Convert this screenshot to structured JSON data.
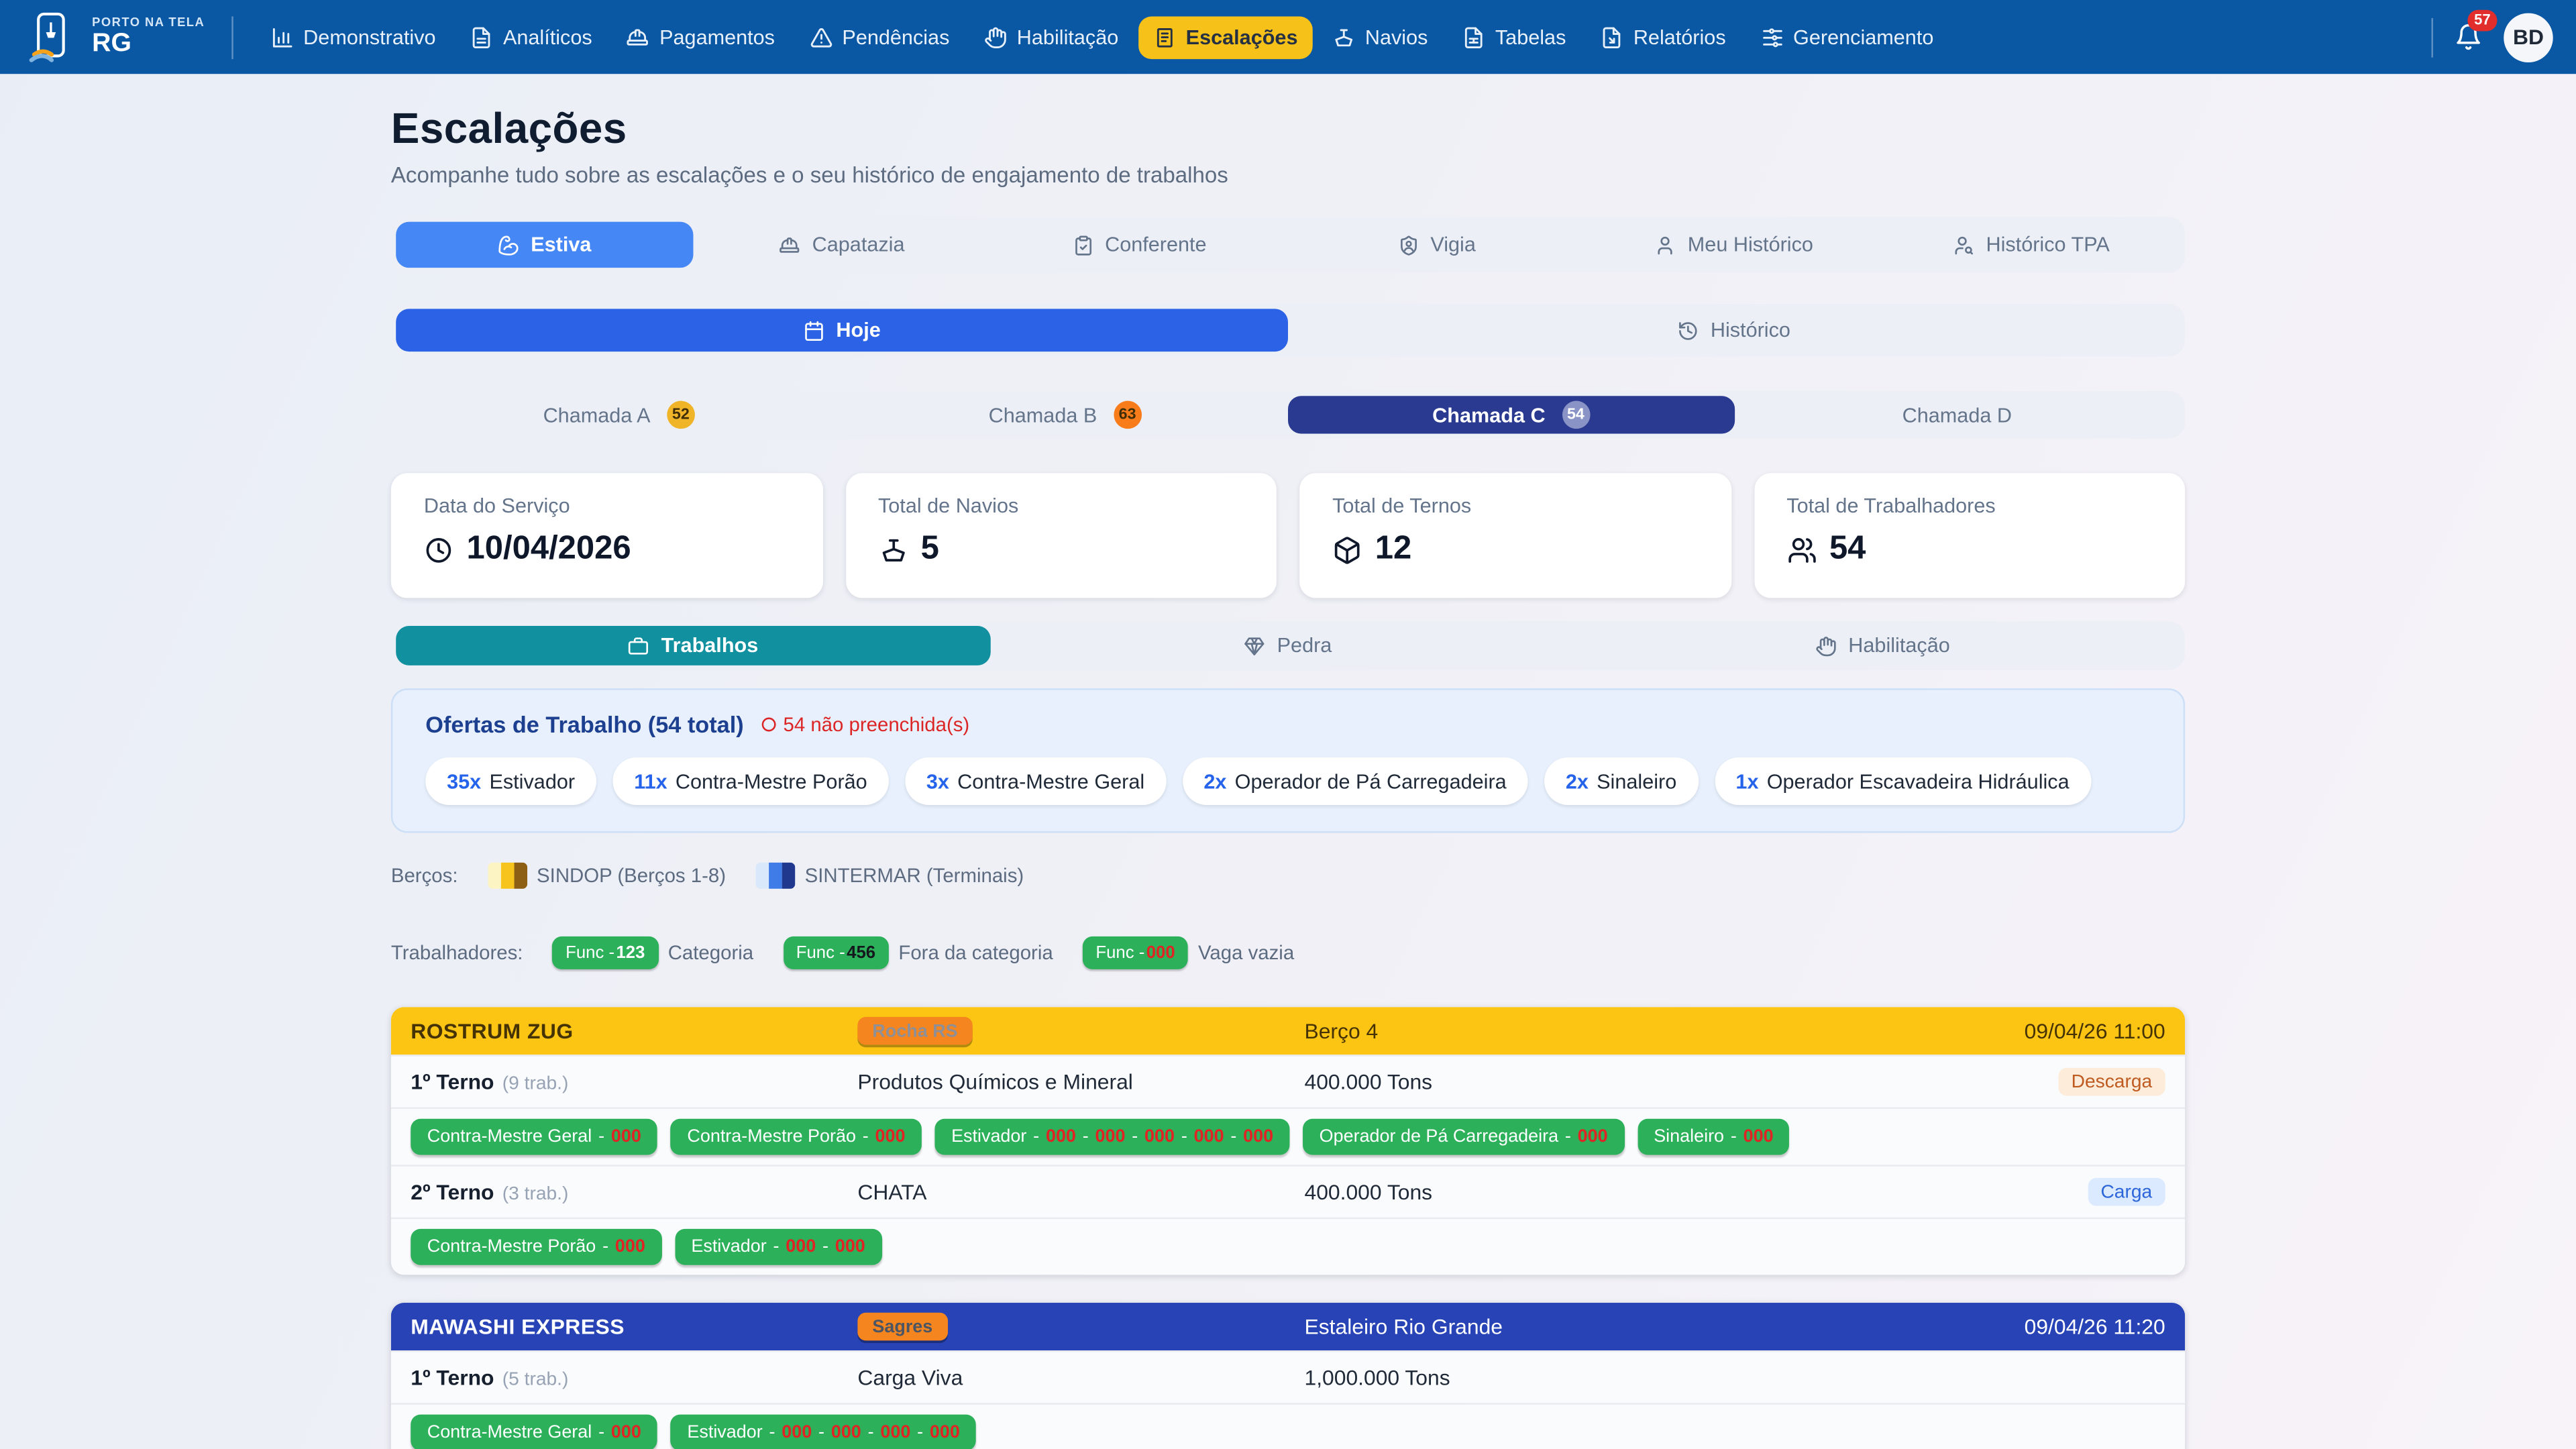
{
  "navbar": {
    "brand_top": "PORTO NA TELA",
    "brand_bottom": "RG",
    "items": [
      {
        "label": "Demonstrativo",
        "icon": "bar-chart",
        "active": false
      },
      {
        "label": "Analíticos",
        "icon": "file-text",
        "active": false
      },
      {
        "label": "Pagamentos",
        "icon": "hard-hat",
        "active": false
      },
      {
        "label": "Pendências",
        "icon": "alert-triangle",
        "active": false
      },
      {
        "label": "Habilitação",
        "icon": "hand",
        "active": false
      },
      {
        "label": "Escalações",
        "icon": "book-list",
        "active": true
      },
      {
        "label": "Navios",
        "icon": "ship",
        "active": false
      },
      {
        "label": "Tabelas",
        "icon": "table-file",
        "active": false
      },
      {
        "label": "Relatórios",
        "icon": "file-report",
        "active": false
      },
      {
        "label": "Gerenciamento",
        "icon": "sliders",
        "active": false
      }
    ],
    "notification_count": "57",
    "avatar_initials": "BD",
    "active_color": "#f6c21a"
  },
  "header": {
    "title": "Escalações",
    "subtitle": "Acompanhe tudo sobre as escalações e o seu histórico de engajamento de trabalhos"
  },
  "category_tabs": [
    {
      "label": "Estiva",
      "icon": "bicep",
      "active": true
    },
    {
      "label": "Capatazia",
      "icon": "hard-hat",
      "active": false
    },
    {
      "label": "Conferente",
      "icon": "clipboard-check",
      "active": false
    },
    {
      "label": "Vigia",
      "icon": "shield-user",
      "active": false
    },
    {
      "label": "Meu Histórico",
      "icon": "user",
      "active": false
    },
    {
      "label": "Histórico TPA",
      "icon": "user-search",
      "active": false
    }
  ],
  "period_tabs": [
    {
      "label": "Hoje",
      "icon": "calendar",
      "active": true
    },
    {
      "label": "Histórico",
      "icon": "history",
      "active": false
    }
  ],
  "chamada_tabs": [
    {
      "label": "Chamada A",
      "badge": "52",
      "badge_bg": "#f0b429",
      "badge_text": "#3f2d05",
      "active": false
    },
    {
      "label": "Chamada B",
      "badge": "63",
      "badge_bg": "#f97c1b",
      "badge_text": "#3f2d05",
      "active": false
    },
    {
      "label": "Chamada C",
      "badge": "54",
      "badge_bg": "#8a93c6",
      "badge_text": "#ffffff",
      "active": true
    },
    {
      "label": "Chamada D",
      "badge": "",
      "badge_bg": "",
      "badge_text": "",
      "active": false
    }
  ],
  "stat_cards": [
    {
      "label": "Data do Serviço",
      "icon": "clock",
      "value": "10/04/2026"
    },
    {
      "label": "Total de Navios",
      "icon": "ship",
      "value": "5"
    },
    {
      "label": "Total de Ternos",
      "icon": "package",
      "value": "12"
    },
    {
      "label": "Total de Trabalhadores",
      "icon": "users",
      "value": "54"
    }
  ],
  "view_tabs": [
    {
      "label": "Trabalhos",
      "icon": "briefcase",
      "active": true
    },
    {
      "label": "Pedra",
      "icon": "gem",
      "active": false
    },
    {
      "label": "Habilitação",
      "icon": "hand",
      "active": false
    }
  ],
  "offers": {
    "title": "Ofertas de Trabalho (54 total)",
    "warning": "54 não preenchida(s)",
    "chips": [
      {
        "count": "35x",
        "label": "Estivador"
      },
      {
        "count": "11x",
        "label": "Contra-Mestre Porão"
      },
      {
        "count": "3x",
        "label": "Contra-Mestre Geral"
      },
      {
        "count": "2x",
        "label": "Operador de Pá Carregadeira"
      },
      {
        "count": "2x",
        "label": "Sinaleiro"
      },
      {
        "count": "1x",
        "label": "Operador Escavadeira Hidráulica"
      }
    ]
  },
  "legend_bercos": {
    "label": "Berços:",
    "items": [
      {
        "name": "SINDOP (Berços 1-8)",
        "colors": [
          "#fdf4c4",
          "#f6c41d",
          "#8d5f14"
        ]
      },
      {
        "name": "SINTERMAR (Terminais)",
        "colors": [
          "#d9e8fb",
          "#3f7ce8",
          "#20398f"
        ]
      }
    ]
  },
  "legend_trabalhadores": {
    "label": "Trabalhadores:",
    "chip_prefix": "Func -",
    "items": [
      {
        "number": "123",
        "number_color": "#ffffff",
        "desc": "Categoria"
      },
      {
        "number": "456",
        "number_color": "#14181d",
        "desc": "Fora da categoria"
      },
      {
        "number": "000",
        "number_color": "#e02424",
        "desc": "Vaga vazia"
      }
    ]
  },
  "ships": [
    {
      "name": "ROSTRUM ZUG",
      "badge": "Rocha RS",
      "location": "Berço 4",
      "datetime": "09/04/26 11:00",
      "theme": {
        "header_bg": "#fcc513",
        "header_text": "#463305",
        "badge_bg": "#f5861f",
        "badge_text": "#8f8f97"
      },
      "ternos": [
        {
          "label": "1º Terno",
          "workers": "(9 trab.)",
          "cargo": "Produtos Químicos e Mineral",
          "tons": "400.000 Tons",
          "operation": "Descarga",
          "operation_style": "descarga",
          "chips": [
            {
              "label": "Contra-Mestre Geral",
              "slots": [
                "000"
              ]
            },
            {
              "label": "Contra-Mestre Porão",
              "slots": [
                "000"
              ]
            },
            {
              "label": "Estivador",
              "slots": [
                "000",
                "000",
                "000",
                "000",
                "000"
              ]
            },
            {
              "label": "Operador de Pá Carregadeira",
              "slots": [
                "000"
              ]
            },
            {
              "label": "Sinaleiro",
              "slots": [
                "000"
              ]
            }
          ]
        },
        {
          "label": "2º Terno",
          "workers": "(3 trab.)",
          "cargo": "CHATA",
          "tons": "400.000 Tons",
          "operation": "Carga",
          "operation_style": "carga",
          "chips": [
            {
              "label": "Contra-Mestre Porão",
              "slots": [
                "000"
              ]
            },
            {
              "label": "Estivador",
              "slots": [
                "000",
                "000"
              ]
            }
          ]
        }
      ]
    },
    {
      "name": "MAWASHI EXPRESS",
      "badge": "Sagres",
      "location": "Estaleiro Rio Grande",
      "datetime": "09/04/26 11:20",
      "theme": {
        "header_bg": "#2743b5",
        "header_text": "#ffffff",
        "badge_bg": "#f5861f",
        "badge_text": "#4b5563"
      },
      "ternos": [
        {
          "label": "1º Terno",
          "workers": "(5 trab.)",
          "cargo": "Carga Viva",
          "tons": "1,000.000 Tons",
          "operation": "",
          "operation_style": "",
          "chips": [
            {
              "label": "Contra-Mestre Geral",
              "slots": [
                "000"
              ]
            },
            {
              "label": "Estivador",
              "slots": [
                "000",
                "000",
                "000",
                "000"
              ]
            }
          ]
        }
      ]
    }
  ]
}
